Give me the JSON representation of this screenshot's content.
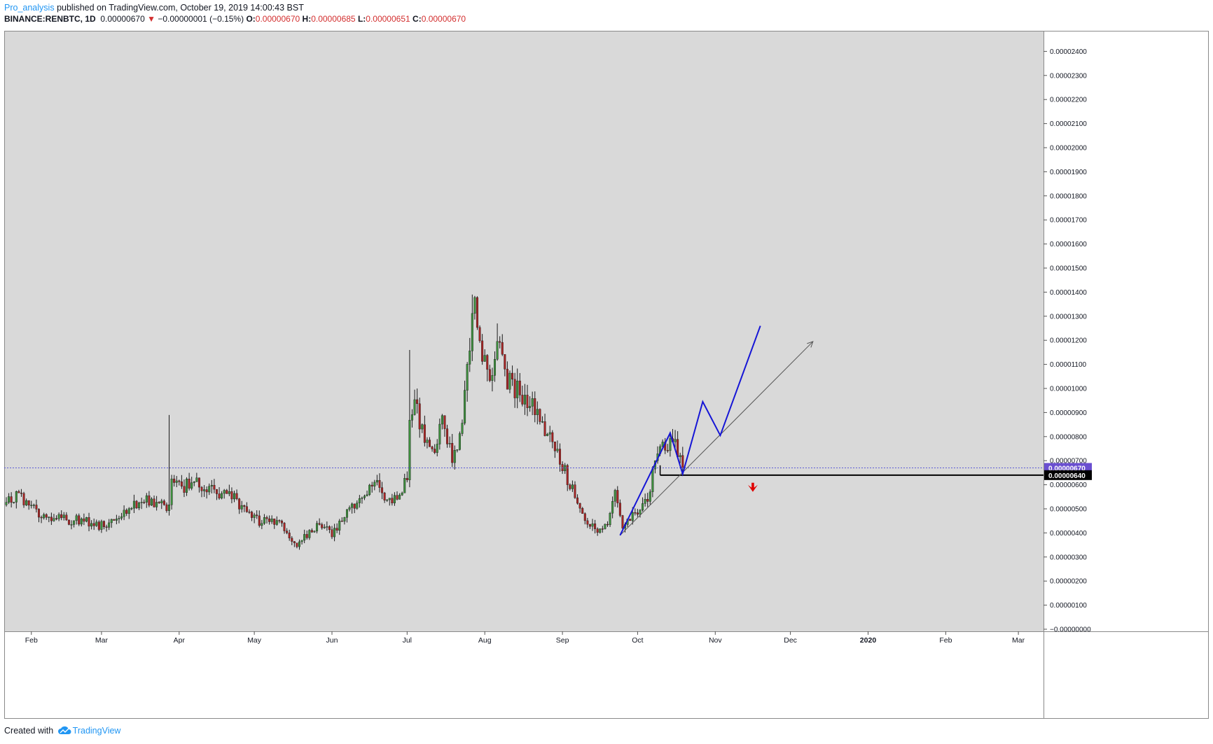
{
  "header": {
    "author": "Pro_analysis",
    "published_text": "published on TradingView.com, October 19, 2019 14:00:43 BST",
    "symbol": "BINANCE:RENBTC, 1D",
    "last": "0.00000670",
    "change": "−0.00000001 (−0.15%)",
    "o_label": "O:",
    "o": "0.00000670",
    "h_label": "H:",
    "h": "0.00000685",
    "l_label": "L:",
    "l": "0.00000651",
    "c_label": "C:",
    "c": "0.00000670"
  },
  "footer": {
    "created_with": "Created with",
    "brand": "TradingView"
  },
  "colors": {
    "plot_bg": "#d9d9d9",
    "up": "#3d8f3d",
    "down": "#a82424",
    "pattern": "#1515d6",
    "trend": "#555555",
    "price_line": "#5b5bd6",
    "current_badge": "#6a4fd0",
    "support_badge": "#000000",
    "arrow": "#e00000"
  },
  "chart_data": {
    "type": "candlestick",
    "symbol": "BINANCE:RENBTC",
    "interval": "1D",
    "y_axis": {
      "min": 0,
      "max": 2.4e-05,
      "step": 1e-06,
      "tick_labels": [
        "−0.00000000",
        "0.00000100",
        "0.00000200",
        "0.00000300",
        "0.00000400",
        "0.00000500",
        "0.00000600",
        "0.00000700",
        "0.00000800",
        "0.00000900",
        "0.00001000",
        "0.00001100",
        "0.00001200",
        "0.00001300",
        "0.00001400",
        "0.00001500",
        "0.00001600",
        "0.00001700",
        "0.00001800",
        "0.00001900",
        "0.00002000",
        "0.00002100",
        "0.00002200",
        "0.00002300",
        "0.00002400"
      ]
    },
    "x_axis": {
      "start": "2019-01-22",
      "end": "2020-03-19",
      "tick_labels": [
        {
          "date": "2019-02-01",
          "label": "Feb"
        },
        {
          "date": "2019-03-01",
          "label": "Mar"
        },
        {
          "date": "2019-04-01",
          "label": "Apr"
        },
        {
          "date": "2019-05-01",
          "label": "May"
        },
        {
          "date": "2019-06-01",
          "label": "Jun"
        },
        {
          "date": "2019-07-01",
          "label": "Jul"
        },
        {
          "date": "2019-08-01",
          "label": "Aug"
        },
        {
          "date": "2019-09-01",
          "label": "Sep"
        },
        {
          "date": "2019-10-01",
          "label": "Oct"
        },
        {
          "date": "2019-11-01",
          "label": "Nov"
        },
        {
          "date": "2019-12-01",
          "label": "Dec"
        },
        {
          "date": "2020-01-01",
          "label": "2020"
        },
        {
          "date": "2020-02-01",
          "label": "Feb"
        },
        {
          "date": "2020-03-01",
          "label": "Mar"
        }
      ]
    },
    "start_date": "2019-01-22",
    "close_path": [
      [
        "2019-01-22",
        5.3e-06
      ],
      [
        "2019-01-27",
        5.6e-06
      ],
      [
        "2019-01-31",
        5.1e-06
      ],
      [
        "2019-02-05",
        4.75e-06
      ],
      [
        "2019-02-15",
        4.55e-06
      ],
      [
        "2019-02-22",
        4.55e-06
      ],
      [
        "2019-02-28",
        4.3e-06
      ],
      [
        "2019-03-06",
        4.5e-06
      ],
      [
        "2019-03-12",
        5.1e-06
      ],
      [
        "2019-03-18",
        5.4e-06
      ],
      [
        "2019-03-24",
        5.25e-06
      ],
      [
        "2019-03-28",
        5e-06
      ],
      [
        "2019-03-29",
        6e-06
      ],
      [
        "2019-04-02",
        5.9e-06
      ],
      [
        "2019-04-07",
        6.1e-06
      ],
      [
        "2019-04-12",
        5.8e-06
      ],
      [
        "2019-04-18",
        5.6e-06
      ],
      [
        "2019-04-23",
        5.4e-06
      ],
      [
        "2019-04-28",
        4.9e-06
      ],
      [
        "2019-05-03",
        4.5e-06
      ],
      [
        "2019-05-08",
        4.5e-06
      ],
      [
        "2019-05-13",
        4.2e-06
      ],
      [
        "2019-05-18",
        3.5e-06
      ],
      [
        "2019-05-22",
        3.9e-06
      ],
      [
        "2019-05-27",
        4.4e-06
      ],
      [
        "2019-06-01",
        3.9e-06
      ],
      [
        "2019-06-06",
        4.8e-06
      ],
      [
        "2019-06-11",
        5.3e-06
      ],
      [
        "2019-06-15",
        5.8e-06
      ],
      [
        "2019-06-18",
        6.1e-06
      ],
      [
        "2019-06-22",
        5.6e-06
      ],
      [
        "2019-06-27",
        5.4e-06
      ],
      [
        "2019-07-01",
        6.4e-06
      ],
      [
        "2019-07-02",
        8.5e-06
      ],
      [
        "2019-07-04",
        9.5e-06
      ],
      [
        "2019-07-08",
        7.9e-06
      ],
      [
        "2019-07-11",
        7.2e-06
      ],
      [
        "2019-07-15",
        8.6e-06
      ],
      [
        "2019-07-19",
        7e-06
      ],
      [
        "2019-07-22",
        7.8e-06
      ],
      [
        "2019-07-24",
        9.5e-06
      ],
      [
        "2019-07-26",
        1.2e-05
      ],
      [
        "2019-07-28",
        1.32e-05
      ],
      [
        "2019-07-31",
        1.15e-05
      ],
      [
        "2019-08-03",
        1.02e-05
      ],
      [
        "2019-08-06",
        1.18e-05
      ],
      [
        "2019-08-10",
        1.04e-05
      ],
      [
        "2019-08-15",
        9.8e-06
      ],
      [
        "2019-08-20",
        9.2e-06
      ],
      [
        "2019-08-26",
        8.2e-06
      ],
      [
        "2019-08-30",
        7.3e-06
      ],
      [
        "2019-09-04",
        6e-06
      ],
      [
        "2019-09-08",
        5e-06
      ],
      [
        "2019-09-12",
        4.4e-06
      ],
      [
        "2019-09-15",
        3.9e-06
      ],
      [
        "2019-09-19",
        4.5e-06
      ],
      [
        "2019-09-22",
        5.6e-06
      ],
      [
        "2019-09-25",
        4.2e-06
      ],
      [
        "2019-09-28",
        4.6e-06
      ],
      [
        "2019-10-02",
        5e-06
      ],
      [
        "2019-10-06",
        5.6e-06
      ],
      [
        "2019-10-08",
        7.2e-06
      ],
      [
        "2019-10-12",
        7.6e-06
      ],
      [
        "2019-10-15",
        7.9e-06
      ],
      [
        "2019-10-19",
        6.7e-06
      ]
    ],
    "price_line": {
      "value": 6.7e-06,
      "label": "0.00000670"
    },
    "support_line": {
      "value": 6.4e-06,
      "label": "0.00000640",
      "from": "2019-10-10"
    },
    "pattern_projection": [
      [
        "2019-09-24",
        3.9e-06
      ],
      [
        "2019-10-14",
        8.15e-06
      ],
      [
        "2019-10-19",
        6.45e-06
      ],
      [
        "2019-10-27",
        9.45e-06
      ],
      [
        "2019-11-03",
        8.05e-06
      ],
      [
        "2019-11-19",
        1.26e-05
      ]
    ],
    "trend_arrow": [
      [
        "2019-09-24",
        3.9e-06
      ],
      [
        "2019-12-10",
        1.195e-05
      ]
    ],
    "down_arrow": [
      "2019-11-16",
      5.85e-06
    ]
  }
}
